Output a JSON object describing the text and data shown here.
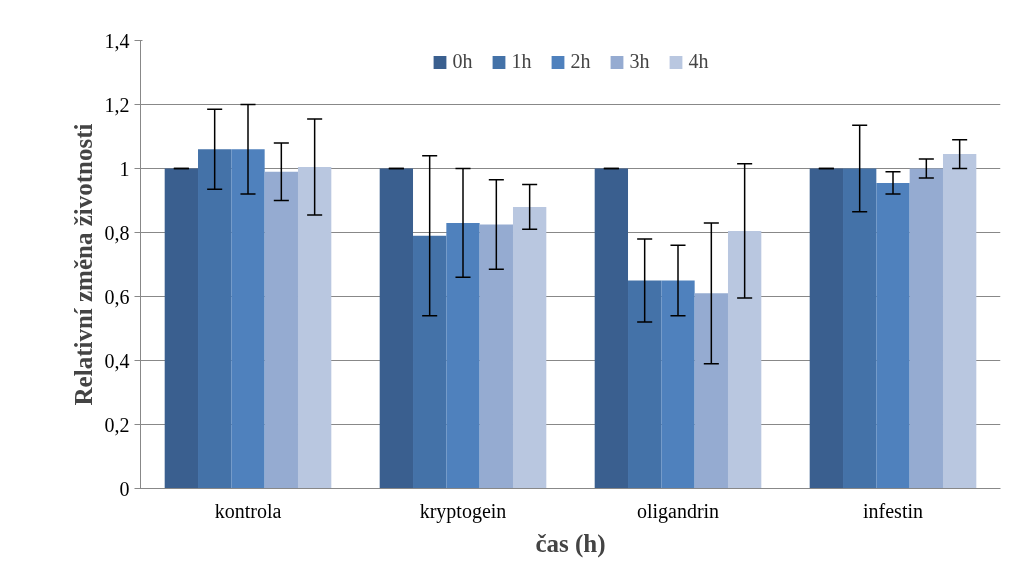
{
  "chart_data": {
    "type": "bar",
    "xlabel": "čas (h)",
    "ylabel": "Relativní změna životnosti",
    "categories": [
      "kontrola",
      "kryptogein",
      "oligandrin",
      "infestin"
    ],
    "series": [
      {
        "name": "0h",
        "color": "#3a5f8f",
        "values": [
          1.0,
          1.0,
          1.0,
          1.0
        ],
        "errors": [
          0,
          0,
          0,
          0
        ]
      },
      {
        "name": "1h",
        "color": "#4472a8",
        "values": [
          1.06,
          0.79,
          0.65,
          1.0
        ],
        "errors": [
          0.125,
          0.25,
          0.13,
          0.135
        ]
      },
      {
        "name": "2h",
        "color": "#4f81bd",
        "values": [
          1.06,
          0.83,
          0.65,
          0.955
        ],
        "errors": [
          0.14,
          0.17,
          0.11,
          0.035
        ]
      },
      {
        "name": "3h",
        "color": "#95abd1",
        "values": [
          0.99,
          0.825,
          0.61,
          1.0
        ],
        "errors": [
          0.09,
          0.14,
          0.22,
          0.03
        ]
      },
      {
        "name": "4h",
        "color": "#b9c7e0",
        "values": [
          1.005,
          0.88,
          0.805,
          1.045
        ],
        "errors": [
          0.15,
          0.07,
          0.21,
          0.045
        ]
      }
    ],
    "ylim": [
      0,
      1.4
    ],
    "yticks": [
      {
        "value": 0,
        "label": "0"
      },
      {
        "value": 0.2,
        "label": "0,2"
      },
      {
        "value": 0.4,
        "label": "0,4"
      },
      {
        "value": 0.6,
        "label": "0,6"
      },
      {
        "value": 0.8,
        "label": "0,8"
      },
      {
        "value": 1.0,
        "label": "1"
      },
      {
        "value": 1.2,
        "label": "1,2"
      },
      {
        "value": 1.4,
        "label": "1,4"
      }
    ],
    "grid": "y",
    "legend": "top"
  }
}
